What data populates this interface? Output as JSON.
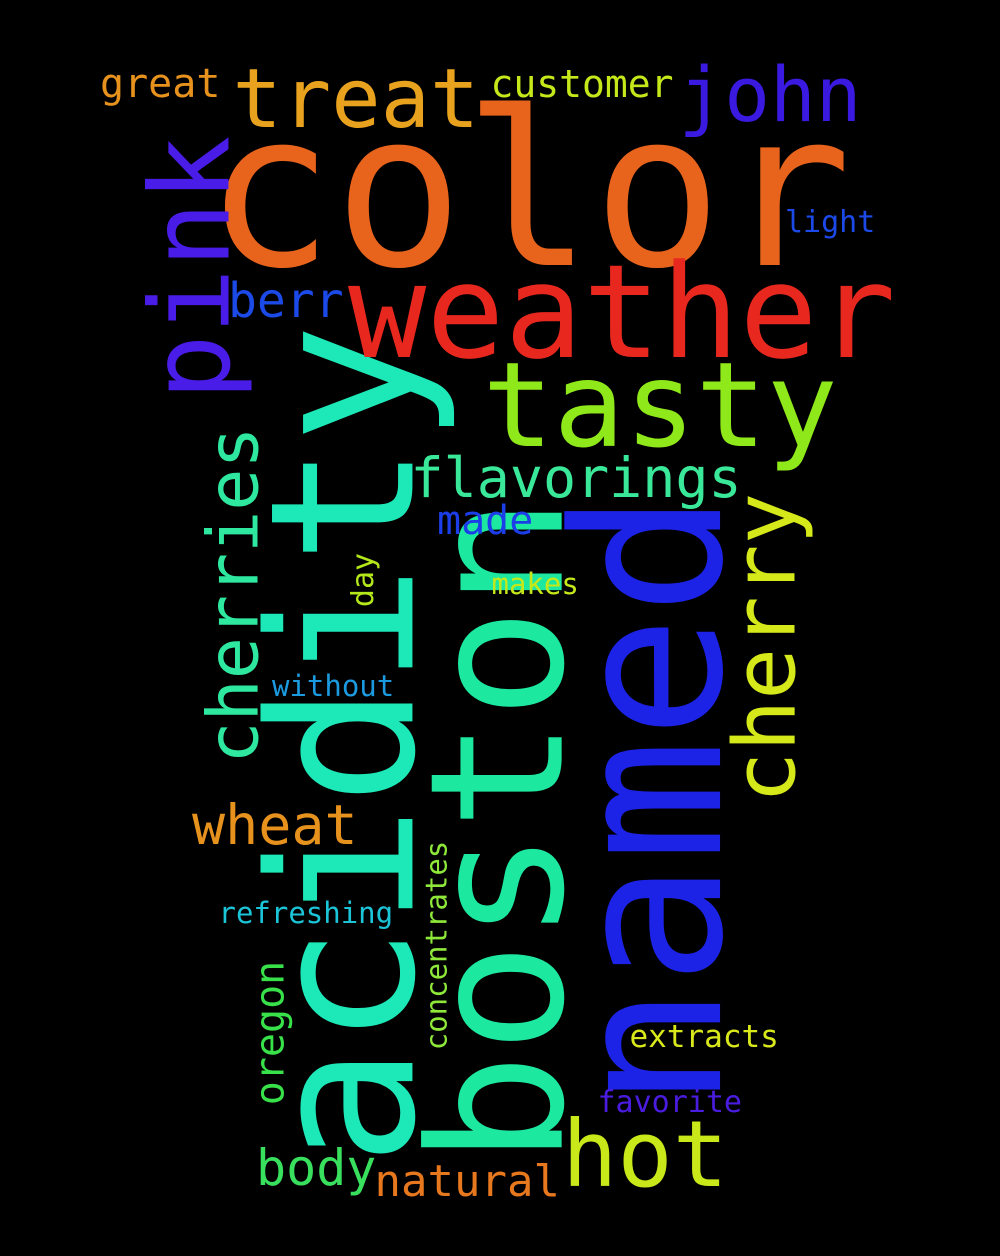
{
  "words": [
    {
      "text": "color",
      "color": "#e8641c",
      "orientation": "horizontal"
    },
    {
      "text": "acidity",
      "color": "#1de8b8",
      "orientation": "vertical"
    },
    {
      "text": "named",
      "color": "#1c22e6",
      "orientation": "vertical"
    },
    {
      "text": "boston",
      "color": "#1de8a0",
      "orientation": "vertical"
    },
    {
      "text": "weather",
      "color": "#e8281e",
      "orientation": "horizontal"
    },
    {
      "text": "tasty",
      "color": "#8ee81a",
      "orientation": "horizontal"
    },
    {
      "text": "pink",
      "color": "#4a1ce8",
      "orientation": "vertical"
    },
    {
      "text": "treat",
      "color": "#e8a21e",
      "orientation": "horizontal"
    },
    {
      "text": "john",
      "color": "#3a1ae0",
      "orientation": "horizontal"
    },
    {
      "text": "cherry",
      "color": "#d4e81a",
      "orientation": "vertical"
    },
    {
      "text": "hot",
      "color": "#c8e81a",
      "orientation": "horizontal"
    },
    {
      "text": "cherries",
      "color": "#2ee8a0",
      "orientation": "vertical"
    },
    {
      "text": "flavorings",
      "color": "#3ae89a",
      "orientation": "horizontal"
    },
    {
      "text": "wheat",
      "color": "#e8921e",
      "orientation": "horizontal"
    },
    {
      "text": "body",
      "color": "#38e05e",
      "orientation": "horizontal"
    },
    {
      "text": "natural",
      "color": "#e8781e",
      "orientation": "horizontal"
    },
    {
      "text": "oregon",
      "color": "#38e04a",
      "orientation": "vertical"
    },
    {
      "text": "berr",
      "color": "#1c4ae8",
      "orientation": "horizontal"
    },
    {
      "text": "customer",
      "color": "#c4e81a",
      "orientation": "horizontal"
    },
    {
      "text": "great",
      "color": "#e8921e",
      "orientation": "horizontal"
    },
    {
      "text": "made",
      "color": "#1c3ee8",
      "orientation": "horizontal"
    },
    {
      "text": "extracts",
      "color": "#d8e81a",
      "orientation": "horizontal"
    },
    {
      "text": "concentrates",
      "color": "#8ee83a",
      "orientation": "vertical"
    },
    {
      "text": "refreshing",
      "color": "#1cc4d8",
      "orientation": "horizontal"
    },
    {
      "text": "favorite",
      "color": "#4a1ce0",
      "orientation": "horizontal"
    },
    {
      "text": "without",
      "color": "#1c9ae0",
      "orientation": "horizontal"
    },
    {
      "text": "makes",
      "color": "#c4e81a",
      "orientation": "horizontal"
    },
    {
      "text": "day",
      "color": "#b4e81a",
      "orientation": "vertical"
    },
    {
      "text": "light",
      "color": "#1c4ae8",
      "orientation": "horizontal"
    }
  ]
}
